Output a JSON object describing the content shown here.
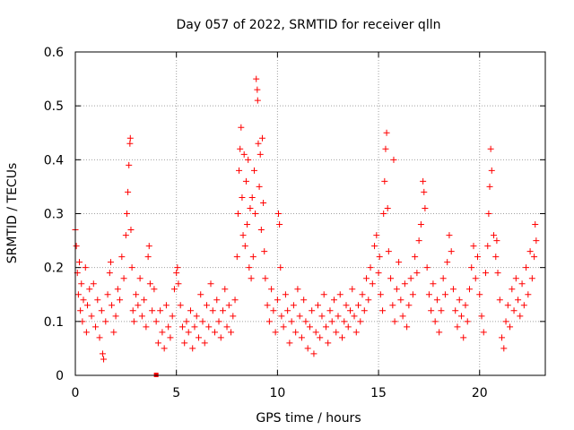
{
  "chart_data": {
    "type": "scatter",
    "title": "Day 057 of 2022, SRMTID for receiver qlln",
    "xlabel": "GPS time / hours",
    "ylabel": "SRMTID / TECUs",
    "xlim": [
      0,
      23.25
    ],
    "ylim": [
      0,
      0.6
    ],
    "x_ticks": [
      0,
      5,
      10,
      15,
      20
    ],
    "x_tick_labels": [
      "0",
      "5",
      "10",
      "15",
      "20"
    ],
    "y_ticks": [
      0,
      0.1,
      0.2,
      0.3,
      0.4,
      0.5,
      0.6
    ],
    "y_tick_labels": [
      "0",
      "0.1",
      "0.2",
      "0.3",
      "0.4",
      "0.5",
      "0.6"
    ],
    "grid": true,
    "marker": "plus",
    "color": "#ff0000",
    "data_gap_marker": {
      "x": 4.0,
      "y": 0.0
    },
    "series": [
      {
        "name": "SRMTID",
        "points": [
          [
            0.0,
            0.27
          ],
          [
            0.05,
            0.24
          ],
          [
            0.1,
            0.19
          ],
          [
            0.15,
            0.15
          ],
          [
            0.2,
            0.21
          ],
          [
            0.25,
            0.12
          ],
          [
            0.3,
            0.17
          ],
          [
            0.35,
            0.1
          ],
          [
            0.4,
            0.14
          ],
          [
            0.5,
            0.2
          ],
          [
            0.55,
            0.08
          ],
          [
            0.6,
            0.13
          ],
          [
            0.7,
            0.16
          ],
          [
            0.8,
            0.11
          ],
          [
            0.9,
            0.17
          ],
          [
            1.0,
            0.09
          ],
          [
            1.1,
            0.14
          ],
          [
            1.2,
            0.07
          ],
          [
            1.3,
            0.12
          ],
          [
            1.35,
            0.04
          ],
          [
            1.4,
            0.03
          ],
          [
            1.5,
            0.1
          ],
          [
            1.6,
            0.15
          ],
          [
            1.7,
            0.19
          ],
          [
            1.75,
            0.21
          ],
          [
            1.8,
            0.13
          ],
          [
            1.9,
            0.08
          ],
          [
            2.0,
            0.11
          ],
          [
            2.1,
            0.16
          ],
          [
            2.2,
            0.14
          ],
          [
            2.3,
            0.22
          ],
          [
            2.4,
            0.18
          ],
          [
            2.5,
            0.26
          ],
          [
            2.55,
            0.3
          ],
          [
            2.6,
            0.34
          ],
          [
            2.65,
            0.39
          ],
          [
            2.7,
            0.43
          ],
          [
            2.72,
            0.44
          ],
          [
            2.75,
            0.27
          ],
          [
            2.8,
            0.2
          ],
          [
            2.85,
            0.12
          ],
          [
            2.9,
            0.1
          ],
          [
            3.0,
            0.15
          ],
          [
            3.1,
            0.13
          ],
          [
            3.2,
            0.18
          ],
          [
            3.3,
            0.11
          ],
          [
            3.4,
            0.14
          ],
          [
            3.5,
            0.09
          ],
          [
            3.6,
            0.22
          ],
          [
            3.65,
            0.24
          ],
          [
            3.7,
            0.17
          ],
          [
            3.8,
            0.12
          ],
          [
            3.9,
            0.16
          ],
          [
            4.0,
            0.1
          ],
          [
            4.1,
            0.06
          ],
          [
            4.2,
            0.12
          ],
          [
            4.3,
            0.08
          ],
          [
            4.4,
            0.05
          ],
          [
            4.5,
            0.13
          ],
          [
            4.6,
            0.09
          ],
          [
            4.7,
            0.07
          ],
          [
            4.8,
            0.11
          ],
          [
            4.9,
            0.16
          ],
          [
            5.0,
            0.19
          ],
          [
            5.05,
            0.2
          ],
          [
            5.1,
            0.17
          ],
          [
            5.2,
            0.13
          ],
          [
            5.3,
            0.09
          ],
          [
            5.4,
            0.06
          ],
          [
            5.5,
            0.1
          ],
          [
            5.6,
            0.08
          ],
          [
            5.7,
            0.12
          ],
          [
            5.8,
            0.05
          ],
          [
            5.9,
            0.09
          ],
          [
            6.0,
            0.11
          ],
          [
            6.1,
            0.07
          ],
          [
            6.2,
            0.15
          ],
          [
            6.3,
            0.1
          ],
          [
            6.4,
            0.06
          ],
          [
            6.5,
            0.13
          ],
          [
            6.6,
            0.09
          ],
          [
            6.7,
            0.17
          ],
          [
            6.8,
            0.12
          ],
          [
            6.9,
            0.08
          ],
          [
            7.0,
            0.14
          ],
          [
            7.1,
            0.1
          ],
          [
            7.2,
            0.07
          ],
          [
            7.3,
            0.12
          ],
          [
            7.4,
            0.16
          ],
          [
            7.5,
            0.09
          ],
          [
            7.6,
            0.13
          ],
          [
            7.7,
            0.08
          ],
          [
            7.8,
            0.11
          ],
          [
            7.9,
            0.14
          ],
          [
            8.0,
            0.22
          ],
          [
            8.05,
            0.3
          ],
          [
            8.1,
            0.38
          ],
          [
            8.15,
            0.42
          ],
          [
            8.2,
            0.46
          ],
          [
            8.25,
            0.33
          ],
          [
            8.3,
            0.26
          ],
          [
            8.35,
            0.41
          ],
          [
            8.4,
            0.24
          ],
          [
            8.45,
            0.36
          ],
          [
            8.5,
            0.28
          ],
          [
            8.55,
            0.4
          ],
          [
            8.6,
            0.2
          ],
          [
            8.65,
            0.31
          ],
          [
            8.7,
            0.18
          ],
          [
            8.75,
            0.33
          ],
          [
            8.8,
            0.22
          ],
          [
            8.85,
            0.38
          ],
          [
            8.9,
            0.3
          ],
          [
            8.95,
            0.55
          ],
          [
            9.0,
            0.53
          ],
          [
            9.02,
            0.51
          ],
          [
            9.05,
            0.43
          ],
          [
            9.1,
            0.35
          ],
          [
            9.15,
            0.41
          ],
          [
            9.2,
            0.27
          ],
          [
            9.25,
            0.44
          ],
          [
            9.3,
            0.32
          ],
          [
            9.35,
            0.23
          ],
          [
            9.4,
            0.18
          ],
          [
            9.5,
            0.13
          ],
          [
            9.6,
            0.1
          ],
          [
            9.7,
            0.16
          ],
          [
            9.8,
            0.12
          ],
          [
            9.9,
            0.08
          ],
          [
            10.0,
            0.14
          ],
          [
            10.05,
            0.3
          ],
          [
            10.1,
            0.28
          ],
          [
            10.15,
            0.2
          ],
          [
            10.2,
            0.11
          ],
          [
            10.3,
            0.09
          ],
          [
            10.4,
            0.15
          ],
          [
            10.5,
            0.12
          ],
          [
            10.6,
            0.06
          ],
          [
            10.7,
            0.1
          ],
          [
            10.8,
            0.13
          ],
          [
            10.9,
            0.08
          ],
          [
            11.0,
            0.16
          ],
          [
            11.1,
            0.11
          ],
          [
            11.2,
            0.07
          ],
          [
            11.3,
            0.14
          ],
          [
            11.4,
            0.1
          ],
          [
            11.5,
            0.05
          ],
          [
            11.6,
            0.09
          ],
          [
            11.7,
            0.12
          ],
          [
            11.8,
            0.04
          ],
          [
            11.9,
            0.08
          ],
          [
            12.0,
            0.13
          ],
          [
            12.1,
            0.07
          ],
          [
            12.2,
            0.11
          ],
          [
            12.3,
            0.15
          ],
          [
            12.4,
            0.09
          ],
          [
            12.5,
            0.06
          ],
          [
            12.6,
            0.12
          ],
          [
            12.7,
            0.1
          ],
          [
            12.8,
            0.14
          ],
          [
            12.9,
            0.08
          ],
          [
            13.0,
            0.11
          ],
          [
            13.1,
            0.15
          ],
          [
            13.2,
            0.07
          ],
          [
            13.3,
            0.1
          ],
          [
            13.4,
            0.13
          ],
          [
            13.5,
            0.09
          ],
          [
            13.6,
            0.12
          ],
          [
            13.7,
            0.16
          ],
          [
            13.8,
            0.11
          ],
          [
            13.9,
            0.08
          ],
          [
            14.0,
            0.13
          ],
          [
            14.1,
            0.1
          ],
          [
            14.2,
            0.15
          ],
          [
            14.3,
            0.12
          ],
          [
            14.4,
            0.18
          ],
          [
            14.5,
            0.14
          ],
          [
            14.6,
            0.2
          ],
          [
            14.7,
            0.17
          ],
          [
            14.8,
            0.24
          ],
          [
            14.9,
            0.26
          ],
          [
            15.0,
            0.19
          ],
          [
            15.05,
            0.22
          ],
          [
            15.1,
            0.15
          ],
          [
            15.2,
            0.12
          ],
          [
            15.25,
            0.3
          ],
          [
            15.3,
            0.36
          ],
          [
            15.35,
            0.42
          ],
          [
            15.4,
            0.45
          ],
          [
            15.45,
            0.31
          ],
          [
            15.5,
            0.23
          ],
          [
            15.6,
            0.18
          ],
          [
            15.7,
            0.13
          ],
          [
            15.75,
            0.4
          ],
          [
            15.8,
            0.1
          ],
          [
            15.9,
            0.16
          ],
          [
            16.0,
            0.21
          ],
          [
            16.1,
            0.14
          ],
          [
            16.2,
            0.11
          ],
          [
            16.3,
            0.17
          ],
          [
            16.4,
            0.09
          ],
          [
            16.5,
            0.13
          ],
          [
            16.6,
            0.18
          ],
          [
            16.7,
            0.15
          ],
          [
            16.8,
            0.22
          ],
          [
            16.9,
            0.19
          ],
          [
            17.0,
            0.25
          ],
          [
            17.1,
            0.28
          ],
          [
            17.2,
            0.36
          ],
          [
            17.25,
            0.34
          ],
          [
            17.3,
            0.31
          ],
          [
            17.4,
            0.2
          ],
          [
            17.5,
            0.15
          ],
          [
            17.6,
            0.12
          ],
          [
            17.7,
            0.17
          ],
          [
            17.8,
            0.1
          ],
          [
            17.9,
            0.14
          ],
          [
            18.0,
            0.08
          ],
          [
            18.1,
            0.12
          ],
          [
            18.2,
            0.18
          ],
          [
            18.3,
            0.15
          ],
          [
            18.4,
            0.21
          ],
          [
            18.5,
            0.26
          ],
          [
            18.6,
            0.23
          ],
          [
            18.7,
            0.16
          ],
          [
            18.8,
            0.12
          ],
          [
            18.9,
            0.09
          ],
          [
            19.0,
            0.14
          ],
          [
            19.1,
            0.11
          ],
          [
            19.2,
            0.07
          ],
          [
            19.3,
            0.13
          ],
          [
            19.4,
            0.1
          ],
          [
            19.5,
            0.16
          ],
          [
            19.6,
            0.2
          ],
          [
            19.7,
            0.24
          ],
          [
            19.8,
            0.18
          ],
          [
            19.9,
            0.22
          ],
          [
            20.0,
            0.15
          ],
          [
            20.1,
            0.11
          ],
          [
            20.2,
            0.08
          ],
          [
            20.3,
            0.19
          ],
          [
            20.4,
            0.24
          ],
          [
            20.45,
            0.3
          ],
          [
            20.5,
            0.35
          ],
          [
            20.55,
            0.42
          ],
          [
            20.6,
            0.38
          ],
          [
            20.7,
            0.26
          ],
          [
            20.8,
            0.22
          ],
          [
            20.85,
            0.25
          ],
          [
            20.9,
            0.19
          ],
          [
            21.0,
            0.14
          ],
          [
            21.1,
            0.07
          ],
          [
            21.2,
            0.05
          ],
          [
            21.3,
            0.1
          ],
          [
            21.4,
            0.13
          ],
          [
            21.5,
            0.09
          ],
          [
            21.6,
            0.16
          ],
          [
            21.7,
            0.12
          ],
          [
            21.8,
            0.18
          ],
          [
            21.9,
            0.14
          ],
          [
            22.0,
            0.11
          ],
          [
            22.1,
            0.17
          ],
          [
            22.2,
            0.13
          ],
          [
            22.3,
            0.2
          ],
          [
            22.4,
            0.15
          ],
          [
            22.5,
            0.23
          ],
          [
            22.6,
            0.18
          ],
          [
            22.7,
            0.22
          ],
          [
            22.75,
            0.28
          ],
          [
            22.8,
            0.25
          ]
        ]
      }
    ]
  }
}
